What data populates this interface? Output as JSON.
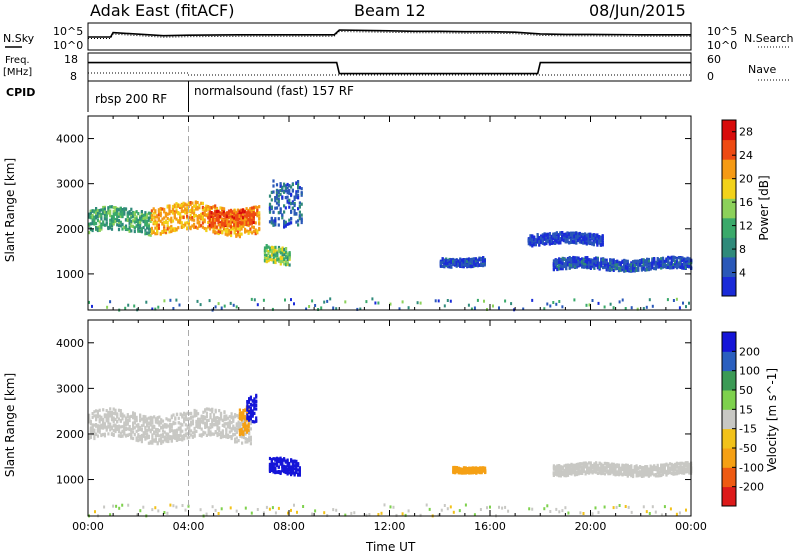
{
  "header": {
    "station": "Adak East (fitACF)",
    "beam": "Beam 12",
    "date": "08/Jun/2015"
  },
  "strip": {
    "nsky_label": "N.Sky",
    "nsearch_label": "N.Search",
    "freq_label_1": "Freq.",
    "freq_label_2": "[MHz]",
    "nave_label": "Nave",
    "cpid_label": "CPID",
    "cpid_segments": [
      {
        "label": "rbsp 200 RF",
        "start_hour": 0,
        "end_hour": 4
      },
      {
        "label": "normalsound (fast) 157 RF",
        "start_hour": 4,
        "end_hour": 24
      }
    ],
    "noise_left_ticks": [
      "10^5",
      "10^0"
    ],
    "noise_right_ticks": [
      "10^5",
      "10^0"
    ],
    "freq_left_ticks": [
      "18",
      "8"
    ],
    "freq_right_ticks": [
      "60",
      "0"
    ]
  },
  "chart_data": [
    {
      "type": "line",
      "title": "",
      "xlabel": "",
      "ylabel": "N.Sky",
      "series": [
        {
          "name": "N.Sky",
          "x": [
            0,
            0.9,
            1,
            3,
            4,
            6,
            8,
            9.8,
            10,
            11,
            12,
            13,
            14,
            15,
            16,
            17,
            18,
            19,
            20,
            22,
            24
          ],
          "y": [
            2.5,
            2.5,
            3.5,
            2.8,
            2.9,
            3.0,
            3.0,
            3.0,
            4.1,
            4.0,
            3.9,
            3.8,
            3.8,
            3.7,
            3.7,
            3.6,
            3.2,
            3.1,
            3.1,
            3.0,
            3.0
          ]
        }
      ]
    },
    {
      "type": "line",
      "title": "",
      "xlabel": "",
      "ylabel": "Freq. [MHz]",
      "series": [
        {
          "name": "Freq. [MHz]",
          "x": [
            0,
            9.9,
            10,
            17.9,
            18,
            24
          ],
          "y": [
            15,
            15,
            10,
            10,
            15,
            15
          ]
        }
      ]
    },
    {
      "type": "heatmap",
      "title": "",
      "xlabel": "Time UT",
      "ylabel": "Slant Range [km]",
      "xticks": [
        "00:00",
        "04:00",
        "08:00",
        "12:00",
        "16:00",
        "20:00",
        "00:00"
      ],
      "yticks": [
        "1000",
        "2000",
        "3000",
        "4000"
      ],
      "ylim": [
        200,
        4500
      ],
      "colorbar": {
        "label": "Power [dB]",
        "ticks": [
          "4",
          "8",
          "12",
          "16",
          "20",
          "24",
          "28"
        ],
        "range": [
          0,
          30
        ]
      },
      "regions": [
        {
          "t0": 0.0,
          "t1": 2.5,
          "r_center": 2200,
          "r_half": 250,
          "value": 14
        },
        {
          "t0": 2.5,
          "t1": 6.8,
          "r_center": 2250,
          "r_half": 300,
          "value": 22
        },
        {
          "t0": 4.8,
          "t1": 6.6,
          "r_center": 2300,
          "r_half": 180,
          "value": 27
        },
        {
          "t0": 7.0,
          "t1": 8.0,
          "r_center": 1450,
          "r_half": 180,
          "value": 16
        },
        {
          "t0": 7.2,
          "t1": 8.5,
          "r_center": 2700,
          "r_half": 500,
          "value": 9
        },
        {
          "t0": 14.0,
          "t1": 15.8,
          "r_center": 1300,
          "r_half": 90,
          "value": 7
        },
        {
          "t0": 18.5,
          "t1": 24.0,
          "r_center": 1250,
          "r_half": 120,
          "value": 7
        },
        {
          "t0": 17.5,
          "t1": 20.5,
          "r_center": 1800,
          "r_half": 120,
          "value": 6
        }
      ]
    },
    {
      "type": "heatmap",
      "title": "",
      "xlabel": "Time UT",
      "ylabel": "Slant Range [km]",
      "xticks": [
        "00:00",
        "04:00",
        "08:00",
        "12:00",
        "16:00",
        "20:00",
        "00:00"
      ],
      "yticks": [
        "1000",
        "2000",
        "3000",
        "4000"
      ],
      "ylim": [
        200,
        4500
      ],
      "colorbar": {
        "label": "Velocity [m s^-1]",
        "ticks": [
          "200",
          "100",
          "50",
          "15",
          "-15",
          "-50",
          "-100",
          "-200"
        ],
        "range": [
          -250,
          250
        ]
      },
      "regions": [
        {
          "t0": 0.0,
          "t1": 6.5,
          "r_center": 2200,
          "r_half": 300,
          "value": 0
        },
        {
          "t0": 6.0,
          "t1": 6.4,
          "r_center": 2400,
          "r_half": 300,
          "value": -60
        },
        {
          "t0": 7.2,
          "t1": 8.4,
          "r_center": 1300,
          "r_half": 170,
          "value": 230
        },
        {
          "t0": 6.3,
          "t1": 6.7,
          "r_center": 2500,
          "r_half": 300,
          "value": 220
        },
        {
          "t0": 14.5,
          "t1": 15.8,
          "r_center": 1250,
          "r_half": 60,
          "value": -60
        },
        {
          "t0": 18.5,
          "t1": 24.0,
          "r_center": 1250,
          "r_half": 120,
          "value": 0
        }
      ]
    }
  ]
}
